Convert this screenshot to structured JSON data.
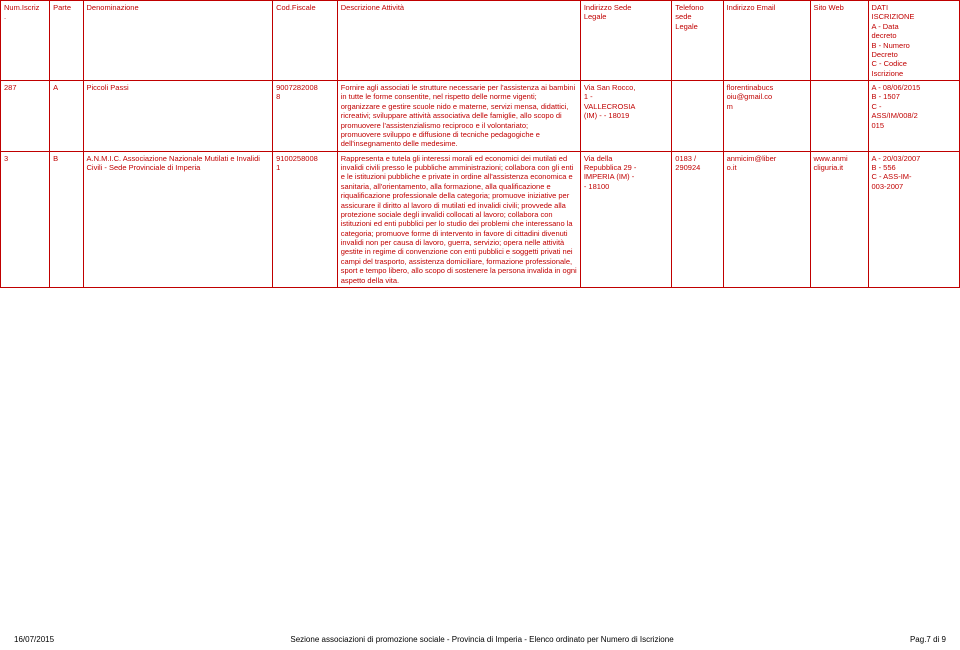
{
  "columns": [
    {
      "key": "num",
      "label": "Num.Iscriz\n."
    },
    {
      "key": "parte",
      "label": "Parte"
    },
    {
      "key": "denom",
      "label": "Denominazione"
    },
    {
      "key": "fisc",
      "label": "Cod.Fiscale"
    },
    {
      "key": "desc",
      "label": "Descrizione Attività"
    },
    {
      "key": "ind",
      "label": "Indirizzo Sede\nLegale"
    },
    {
      "key": "tel",
      "label": "Telefono\nsede\nLegale"
    },
    {
      "key": "email",
      "label": "Indirizzo Email"
    },
    {
      "key": "sito",
      "label": "Sito Web"
    },
    {
      "key": "dati",
      "label": "DATI\nISCRIZIONE\nA - Data\ndecreto\nB - Numero\nDecreto\nC - Codice\nIscrizione"
    }
  ],
  "rows": [
    {
      "num": "287",
      "parte": "A",
      "denom": "Piccoli Passi",
      "fisc": "9007282008\n8",
      "desc": "Fornire agli associati le strutture necessarie per l'assistenza ai bambini in tutte le forme consentite, nel rispetto delle norme vigenti;\norganizzare e gestire scuole nido e materne, servizi mensa, didattici, ricreativi; sviluppare attività associativa delle famiglie, allo scopo di promuovere l'assistenzialismo reciproco e il volontariato;\npromuovere sviluppo e diffusione di tecniche pedagogiche e dell'insegnamento delle medesime.",
      "ind": "Via San Rocco,\n1 -\nVALLECROSIA\n(IM) -  - 18019",
      "tel": "",
      "email": "florentinabucs\noiu@gmail.co\nm",
      "sito": "",
      "dati": "A - 08/06/2015\nB - 1507\nC -\nASS/IM/008/2\n015"
    },
    {
      "num": "3",
      "parte": "B",
      "denom": "A.N.M.I.C. Associazione Nazionale Mutilati e Invalidi Civili - Sede Provinciale di Imperia",
      "fisc": "9100258008\n1",
      "desc": "Rappresenta e tutela gli interessi morali ed economici dei mutilati ed invalidi civili presso le pubbliche amministrazioni; collabora con gli enti e le istituzioni pubbliche e private in ordine all'assistenza economica e sanitaria, all'orientamento, alla formazione, alla qualificazione e riqualificazione professionale della categoria; promuove iniziative per assicurare il diritto al lavoro di mutilati ed invalidi civili; provvede alla protezione sociale degli invalidi collocati al lavoro; collabora con istituzioni ed enti pubblici per lo studio dei problemi che interessano la categoria; promuove forme di intervento in favore di cittadini divenuti invalidi non per causa di lavoro, guerra, servizio; opera nelle attività gestite in regime di convenzione con enti pubblici e soggetti privati nei campi del trasporto, assistenza domiciliare, formazione professionale, sport e tempo libero, allo scopo di sostenere la persona invalida in ogni aspetto della vita.",
      "ind": "Via della\nRepubblica 29 -\nIMPERIA (IM) -\n- 18100",
      "tel": "0183 /\n290924",
      "email": "anmicim@liber\no.it",
      "sito": "www.anmi\ncliguria.it",
      "dati": "A - 20/03/2007\nB - 556\nC - ASS-IM-\n003-2007"
    }
  ],
  "footer": {
    "left": "16/07/2015",
    "center": "Sezione associazioni di promozione sociale - Provincia di Imperia - Elenco ordinato per Numero di Iscrizione",
    "right": "Pag.7 di 9"
  },
  "colors": {
    "text": "#c00000",
    "border": "#c00000",
    "background": "#ffffff",
    "footer": "#000000"
  },
  "fontsize": {
    "cell": 7.5,
    "footer": 8
  }
}
